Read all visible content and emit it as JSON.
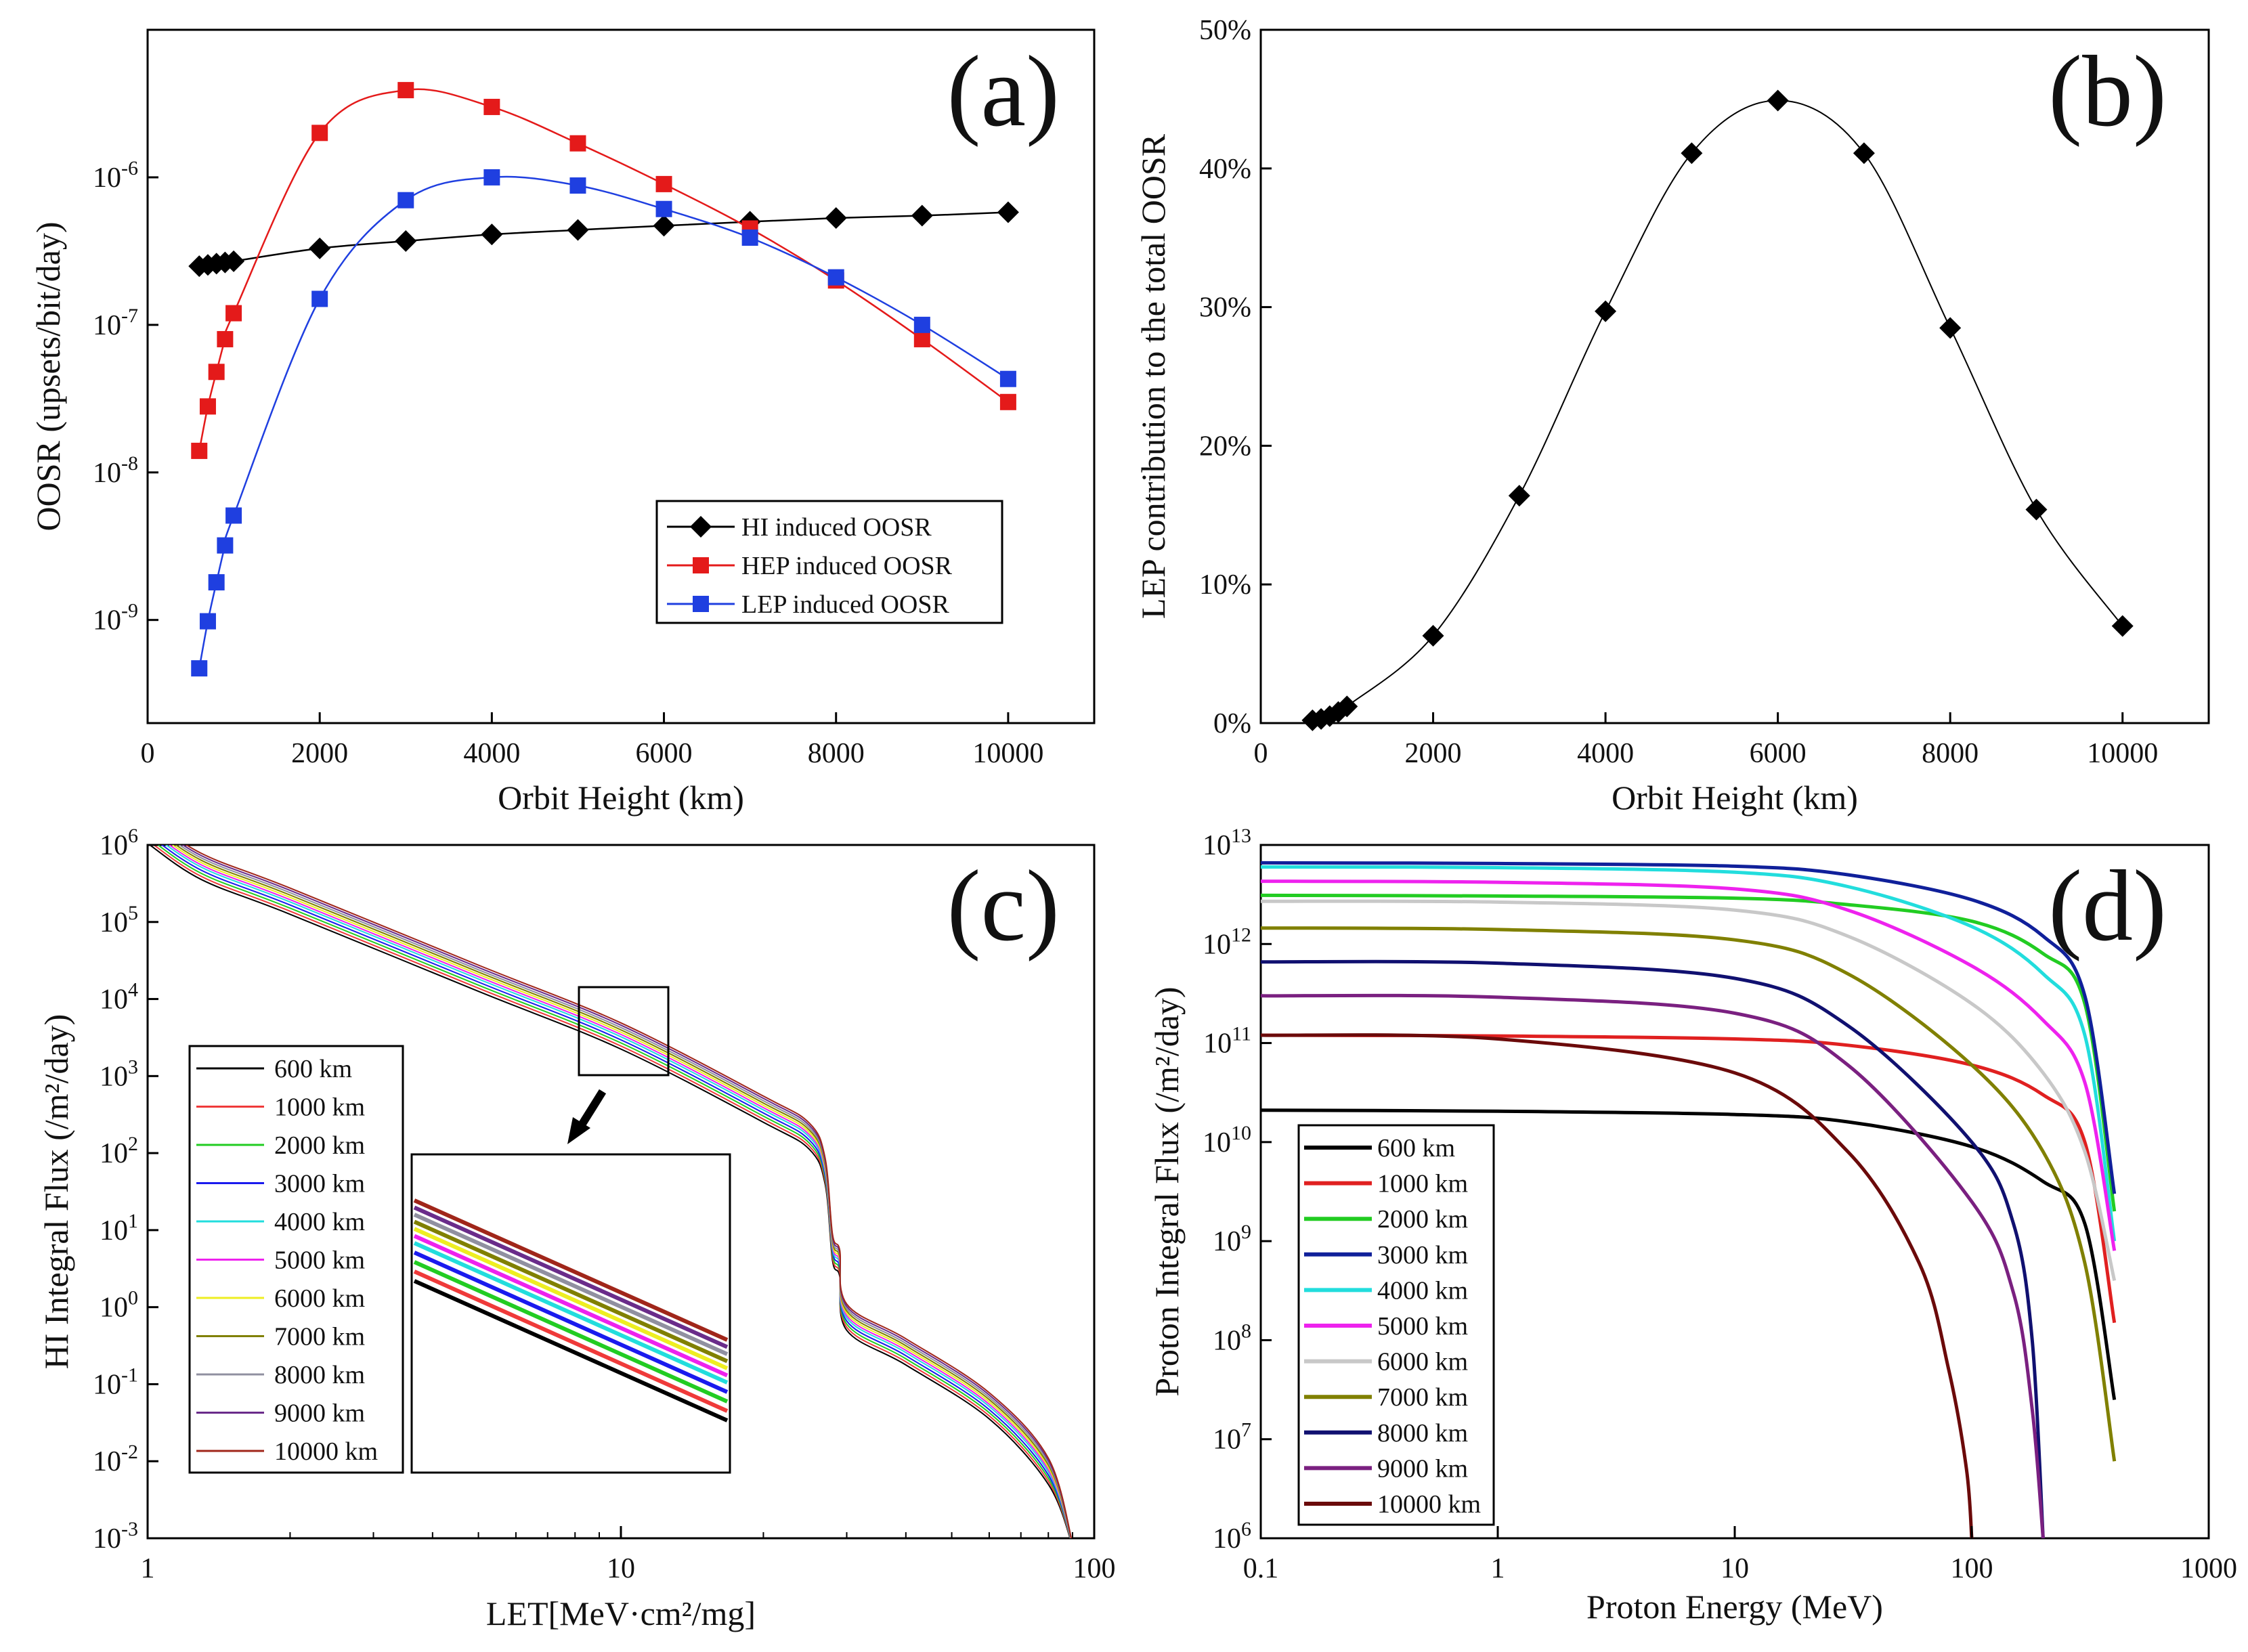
{
  "chart_data": [
    {
      "id": "a",
      "type": "line",
      "panel_label": "(a)",
      "xlabel": "Orbit Height (km)",
      "ylabel": "OOSR (upsets/bit/day)",
      "xscale": "linear",
      "yscale": "log",
      "xlim": [
        0,
        11000
      ],
      "ylim": [
        2e-10,
        1e-05
      ],
      "xticks": [
        0,
        2000,
        4000,
        6000,
        8000,
        10000
      ],
      "xtick_labels": [
        "0",
        "2000",
        "4000",
        "6000",
        "8000",
        "10000"
      ],
      "ytick_exps": [
        -9,
        -8,
        -7,
        -6
      ],
      "legend_position": "bottom-right",
      "x": [
        600,
        700,
        800,
        900,
        1000,
        2000,
        3000,
        4000,
        5000,
        6000,
        7000,
        8000,
        9000,
        10000
      ],
      "series": [
        {
          "name": "HI induced OOSR",
          "color": "#000000",
          "marker": "diamond",
          "values": [
            2.5e-07,
            2.55e-07,
            2.6e-07,
            2.65e-07,
            2.7e-07,
            3.3e-07,
            3.7e-07,
            4.1e-07,
            4.4e-07,
            4.7e-07,
            5e-07,
            5.3e-07,
            5.5e-07,
            5.8e-07
          ]
        },
        {
          "name": "HEP induced OOSR",
          "color": "#e41a1a",
          "marker": "square",
          "values": [
            1.4e-08,
            2.8e-08,
            4.8e-08,
            8e-08,
            1.2e-07,
            2e-06,
            3.9e-06,
            3e-06,
            1.7e-06,
            9e-07,
            4.5e-07,
            2e-07,
            8e-08,
            3e-08
          ]
        },
        {
          "name": "LEP induced OOSR",
          "color": "#1f3fe0",
          "marker": "square",
          "values": [
            4.7e-10,
            9.8e-10,
            1.8e-09,
            3.2e-09,
            5.1e-09,
            1.5e-07,
            7e-07,
            1e-06,
            8.8e-07,
            6.1e-07,
            3.9e-07,
            2.1e-07,
            1e-07,
            4.3e-08
          ]
        }
      ]
    },
    {
      "id": "b",
      "type": "line",
      "panel_label": "(b)",
      "xlabel": "Orbit Height (km)",
      "ylabel": "LEP contribution to the total OOSR",
      "xscale": "linear",
      "yscale": "linear",
      "xlim": [
        0,
        11000
      ],
      "ylim": [
        0,
        50
      ],
      "xticks": [
        0,
        2000,
        4000,
        6000,
        8000,
        10000
      ],
      "xtick_labels": [
        "0",
        "2000",
        "4000",
        "6000",
        "8000",
        "10000"
      ],
      "yticks": [
        0,
        10,
        20,
        30,
        40,
        50
      ],
      "ytick_labels": [
        "0%",
        "10%",
        "20%",
        "30%",
        "40%",
        "50%"
      ],
      "x": [
        600,
        700,
        800,
        900,
        1000,
        2000,
        3000,
        4000,
        5000,
        6000,
        7000,
        8000,
        9000,
        10000
      ],
      "series": [
        {
          "name": "LEP contribution",
          "color": "#000000",
          "marker": "diamond",
          "values": [
            0.2,
            0.3,
            0.5,
            0.8,
            1.2,
            6.3,
            16.4,
            29.7,
            41.1,
            44.9,
            41.1,
            28.5,
            15.4,
            7.0
          ]
        }
      ]
    },
    {
      "id": "c",
      "type": "line",
      "panel_label": "(c)",
      "xlabel": "LET[MeV·cm²/mg]",
      "ylabel": "HI Integral Flux (/m²/day)",
      "xscale": "log",
      "yscale": "log",
      "xlim": [
        1,
        100
      ],
      "ylim": [
        0.001,
        1000000
      ],
      "xticks": [
        1,
        10,
        100
      ],
      "xtick_labels": [
        "1",
        "10",
        "100"
      ],
      "ytick_exps": [
        -3,
        -2,
        -1,
        0,
        1,
        2,
        3,
        4,
        5,
        6
      ],
      "legend_position": "bottom-left",
      "let_x": [
        1,
        1.3,
        2,
        5,
        10,
        20,
        25,
        27,
        28,
        29,
        30,
        40,
        60,
        80,
        90
      ],
      "base_log10_flux_600km": [
        6.02,
        5.55,
        5.1,
        4.1,
        3.35,
        2.4,
        2.05,
        1.6,
        0.6,
        0.4,
        -0.3,
        -0.75,
        -1.45,
        -2.3,
        -3.1
      ],
      "orbit_offsets_log10": [
        0,
        0.04,
        0.08,
        0.12,
        0.16,
        0.19,
        0.22,
        0.25,
        0.28,
        0.31,
        0.34
      ],
      "series": [
        {
          "name": "600 km",
          "color": "#000000"
        },
        {
          "name": "1000 km",
          "color": "#ef3a3a"
        },
        {
          "name": "2000 km",
          "color": "#22cc22"
        },
        {
          "name": "3000 km",
          "color": "#1a1aee"
        },
        {
          "name": "4000 km",
          "color": "#22dddd"
        },
        {
          "name": "5000 km",
          "color": "#ee22ee"
        },
        {
          "name": "6000 km",
          "color": "#eeee22"
        },
        {
          "name": "7000 km",
          "color": "#808000"
        },
        {
          "name": "8000 km",
          "color": "#9090a0"
        },
        {
          "name": "9000 km",
          "color": "#6a2c8a"
        },
        {
          "name": "10000 km",
          "color": "#a0261a"
        }
      ]
    },
    {
      "id": "d",
      "type": "line",
      "panel_label": "(d)",
      "xlabel": "Proton Energy (MeV)",
      "ylabel": "Proton Integral Flux (/m²/day)",
      "xscale": "log",
      "yscale": "log",
      "xlim": [
        0.1,
        1000
      ],
      "ylim": [
        1000000,
        10000000000000
      ],
      "xticks": [
        0.1,
        1,
        10,
        100,
        1000
      ],
      "xtick_labels": [
        "0.1",
        "1",
        "10",
        "100",
        "1000"
      ],
      "ytick_exps": [
        6,
        7,
        8,
        9,
        10,
        11,
        12,
        13
      ],
      "legend_position": "bottom-left",
      "series": [
        {
          "name": "600 km",
          "color": "#000000",
          "x": [
            0.1,
            1,
            10,
            30,
            100,
            200,
            300,
            400
          ],
          "values": [
            21000000000.0,
            20500000000.0,
            19000000000.0,
            16000000000.0,
            9000000000.0,
            4000000000.0,
            1500000000.0,
            25000000.0
          ]
        },
        {
          "name": "1000 km",
          "color": "#e02020",
          "x": [
            0.1,
            1,
            10,
            30,
            100,
            200,
            300,
            400
          ],
          "values": [
            120000000000.0,
            118000000000.0,
            110000000000.0,
            95000000000.0,
            60000000000.0,
            30000000000.0,
            10000000000.0,
            150000000.0
          ]
        },
        {
          "name": "2000 km",
          "color": "#22cc22",
          "x": [
            0.1,
            1,
            10,
            30,
            100,
            200,
            300,
            400
          ],
          "values": [
            3100000000000.0,
            3050000000000.0,
            2900000000000.0,
            2500000000000.0,
            1700000000000.0,
            800000000000.0,
            250000000000.0,
            2000000000.0
          ]
        },
        {
          "name": "3000 km",
          "color": "#10209a",
          "x": [
            0.1,
            1,
            10,
            30,
            100,
            200,
            300,
            400
          ],
          "values": [
            6600000000000.0,
            6500000000000.0,
            6100000000000.0,
            5000000000000.0,
            2800000000000.0,
            1200000000000.0,
            300000000000.0,
            3000000000.0
          ]
        },
        {
          "name": "4000 km",
          "color": "#22dddd",
          "x": [
            0.1,
            1,
            10,
            30,
            100,
            200,
            300,
            400
          ],
          "values": [
            6000000000000.0,
            5900000000000.0,
            5300000000000.0,
            3800000000000.0,
            1500000000000.0,
            500000000000.0,
            120000000000.0,
            1000000000.0
          ]
        },
        {
          "name": "5000 km",
          "color": "#ee22ee",
          "x": [
            0.1,
            1,
            10,
            30,
            100,
            200,
            300,
            400
          ],
          "values": [
            4300000000000.0,
            4200000000000.0,
            3600000000000.0,
            2200000000000.0,
            600000000000.0,
            170000000000.0,
            40000000000.0,
            800000000.0
          ]
        },
        {
          "name": "6000 km",
          "color": "#c8c8c8",
          "x": [
            0.1,
            1,
            10,
            30,
            100,
            200,
            300,
            400
          ],
          "values": [
            2700000000000.0,
            2650000000000.0,
            2200000000000.0,
            1200000000000.0,
            250000000000.0,
            50000000000.0,
            8000000000.0,
            400000000.0
          ]
        },
        {
          "name": "7000 km",
          "color": "#808000",
          "x": [
            0.1,
            1,
            10,
            30,
            100,
            200,
            300,
            400
          ],
          "values": [
            1450000000000.0,
            1400000000000.0,
            1100000000000.0,
            500000000000.0,
            60000000000.0,
            8000000000.0,
            600000000.0,
            6000000.0
          ]
        },
        {
          "name": "8000 km",
          "color": "#101070",
          "x": [
            0.1,
            1,
            10,
            30,
            100,
            150,
            180,
            200
          ],
          "values": [
            660000000000.0,
            640000000000.0,
            450000000000.0,
            150000000000.0,
            10000000000.0,
            1500000000.0,
            100000000.0,
            1000000.0
          ]
        },
        {
          "name": "9000 km",
          "color": "#7a2080",
          "x": [
            0.1,
            1,
            10,
            30,
            100,
            150,
            180,
            200
          ],
          "values": [
            300000000000.0,
            290000000000.0,
            200000000000.0,
            60000000000.0,
            2500000000.0,
            300000000.0,
            20000000.0,
            1000000.0
          ]
        },
        {
          "name": "10000 km",
          "color": "#6b0a0a",
          "x": [
            0.1,
            1,
            10,
            30,
            60,
            80,
            95,
            100
          ],
          "values": [
            120000000000.0,
            110000000000.0,
            50000000000.0,
            8000000000.0,
            600000000.0,
            50000000.0,
            5000000.0,
            1000000.0
          ]
        }
      ]
    }
  ]
}
